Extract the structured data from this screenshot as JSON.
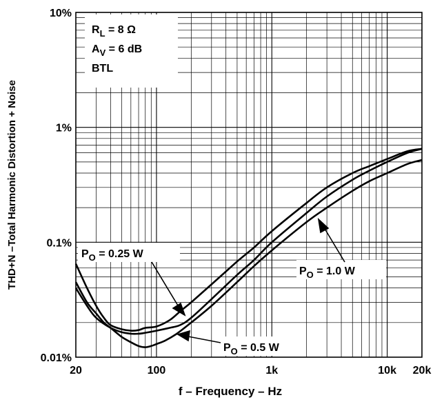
{
  "chart_data": {
    "type": "line",
    "x_scale": "log",
    "y_scale": "log",
    "xlim": [
      20,
      20000
    ],
    "ylim": [
      0.01,
      10
    ],
    "grid": true,
    "xlabel": "f – Frequency – Hz",
    "ylabel": "THD+N –Total Harmonic Distortion + Noise",
    "x_ticks": [
      {
        "value": 20,
        "label": "20"
      },
      {
        "value": 100,
        "label": "100"
      },
      {
        "value": 1000,
        "label": "1k"
      },
      {
        "value": 10000,
        "label": "10k"
      },
      {
        "value": 20000,
        "label": "20k"
      }
    ],
    "y_ticks": [
      {
        "value": 0.01,
        "label": "0.01%"
      },
      {
        "value": 0.1,
        "label": "0.1%"
      },
      {
        "value": 1,
        "label": "1%"
      },
      {
        "value": 10,
        "label": "10%"
      }
    ],
    "conditions": {
      "rl_main": "R",
      "rl_sub": "L",
      "rl_value": " = 8 Ω",
      "av_main": "A",
      "av_sub": "V",
      "av_value": " = 6 dB",
      "mode": "BTL"
    },
    "series": [
      {
        "name_main": "P",
        "name_sub": "O",
        "name_value": " = 0.25 W",
        "points": [
          [
            20,
            0.065
          ],
          [
            25,
            0.04
          ],
          [
            30,
            0.028
          ],
          [
            35,
            0.022
          ],
          [
            40,
            0.019
          ],
          [
            50,
            0.0175
          ],
          [
            60,
            0.017
          ],
          [
            70,
            0.0172
          ],
          [
            80,
            0.018
          ],
          [
            100,
            0.0185
          ],
          [
            130,
            0.021
          ],
          [
            160,
            0.025
          ],
          [
            200,
            0.03
          ],
          [
            300,
            0.043
          ],
          [
            500,
            0.068
          ],
          [
            700,
            0.09
          ],
          [
            1000,
            0.125
          ],
          [
            2000,
            0.22
          ],
          [
            3000,
            0.3
          ],
          [
            5000,
            0.4
          ],
          [
            7000,
            0.46
          ],
          [
            10000,
            0.53
          ],
          [
            15000,
            0.62
          ],
          [
            20000,
            0.65
          ]
        ]
      },
      {
        "name_main": "P",
        "name_sub": "O",
        "name_value": " = 0.5 W",
        "points": [
          [
            20,
            0.04
          ],
          [
            25,
            0.028
          ],
          [
            30,
            0.022
          ],
          [
            40,
            0.018
          ],
          [
            50,
            0.0165
          ],
          [
            60,
            0.016
          ],
          [
            70,
            0.016
          ],
          [
            80,
            0.0163
          ],
          [
            100,
            0.017
          ],
          [
            130,
            0.018
          ],
          [
            160,
            0.019
          ],
          [
            200,
            0.022
          ],
          [
            300,
            0.032
          ],
          [
            500,
            0.052
          ],
          [
            700,
            0.07
          ],
          [
            1000,
            0.1
          ],
          [
            2000,
            0.18
          ],
          [
            3000,
            0.25
          ],
          [
            5000,
            0.35
          ],
          [
            7000,
            0.42
          ],
          [
            10000,
            0.5
          ],
          [
            15000,
            0.6
          ],
          [
            20000,
            0.65
          ]
        ]
      },
      {
        "name_main": "P",
        "name_sub": "O",
        "name_value": " = 1.0 W",
        "points": [
          [
            20,
            0.045
          ],
          [
            25,
            0.03
          ],
          [
            30,
            0.024
          ],
          [
            35,
            0.02
          ],
          [
            40,
            0.018
          ],
          [
            50,
            0.015
          ],
          [
            60,
            0.0135
          ],
          [
            70,
            0.0125
          ],
          [
            80,
            0.0122
          ],
          [
            90,
            0.0125
          ],
          [
            100,
            0.013
          ],
          [
            120,
            0.014
          ],
          [
            150,
            0.016
          ],
          [
            200,
            0.02
          ],
          [
            300,
            0.028
          ],
          [
            500,
            0.045
          ],
          [
            700,
            0.062
          ],
          [
            1000,
            0.085
          ],
          [
            2000,
            0.15
          ],
          [
            3000,
            0.2
          ],
          [
            5000,
            0.28
          ],
          [
            7000,
            0.34
          ],
          [
            10000,
            0.4
          ],
          [
            15000,
            0.48
          ],
          [
            20000,
            0.52
          ]
        ]
      }
    ]
  }
}
